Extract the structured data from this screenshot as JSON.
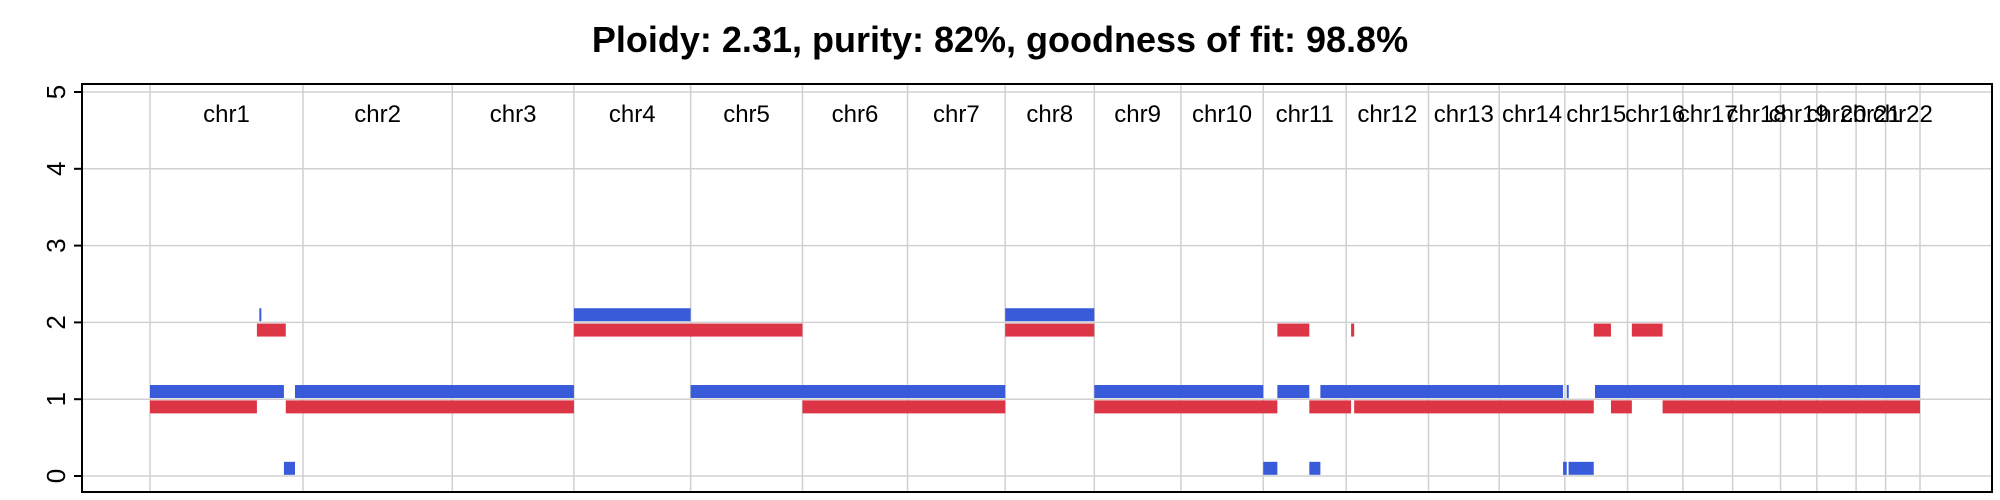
{
  "chart_data": {
    "type": "copy-number-segments",
    "title": "Ploidy: 2.31, purity: 82%, goodness of fit: 98.8%",
    "ylim": [
      0,
      5
    ],
    "yticks": [
      "0",
      "1",
      "2",
      "3",
      "4",
      "5"
    ],
    "grid": true,
    "colors": {
      "major": "#3a5bd9",
      "minor": "#dc3545"
    },
    "genome_length": 2881,
    "chromosomes": [
      {
        "name": "chr1",
        "start": 0,
        "end": 249
      },
      {
        "name": "chr2",
        "start": 249,
        "end": 492
      },
      {
        "name": "chr3",
        "start": 492,
        "end": 690
      },
      {
        "name": "chr4",
        "start": 690,
        "end": 880
      },
      {
        "name": "chr5",
        "start": 880,
        "end": 1062
      },
      {
        "name": "chr6",
        "start": 1062,
        "end": 1233
      },
      {
        "name": "chr7",
        "start": 1233,
        "end": 1392
      },
      {
        "name": "chr8",
        "start": 1392,
        "end": 1537
      },
      {
        "name": "chr9",
        "start": 1537,
        "end": 1678
      },
      {
        "name": "chr10",
        "start": 1678,
        "end": 1812
      },
      {
        "name": "chr11",
        "start": 1812,
        "end": 1947
      },
      {
        "name": "chr12",
        "start": 1947,
        "end": 2081
      },
      {
        "name": "chr13",
        "start": 2081,
        "end": 2196
      },
      {
        "name": "chr14",
        "start": 2196,
        "end": 2303
      },
      {
        "name": "chr15",
        "start": 2303,
        "end": 2405
      },
      {
        "name": "chr16",
        "start": 2405,
        "end": 2495
      },
      {
        "name": "chr17",
        "start": 2495,
        "end": 2576
      },
      {
        "name": "chr18",
        "start": 2576,
        "end": 2654
      },
      {
        "name": "chr19",
        "start": 2654,
        "end": 2713
      },
      {
        "name": "chr20",
        "start": 2713,
        "end": 2777
      },
      {
        "name": "chr21",
        "start": 2777,
        "end": 2825
      },
      {
        "name": "chr22",
        "start": 2825,
        "end": 2881
      }
    ],
    "series": [
      {
        "role": "major",
        "segments": [
          {
            "start": 0,
            "end": 218,
            "value": 1.1
          },
          {
            "start": 178,
            "end": 180,
            "value": 2.1
          },
          {
            "start": 218,
            "end": 236,
            "value": 0.1
          },
          {
            "start": 236,
            "end": 690,
            "value": 1.1
          },
          {
            "start": 690,
            "end": 880,
            "value": 2.1
          },
          {
            "start": 880,
            "end": 1392,
            "value": 1.1
          },
          {
            "start": 1392,
            "end": 1537,
            "value": 2.1
          },
          {
            "start": 1537,
            "end": 1812,
            "value": 1.1
          },
          {
            "start": 1812,
            "end": 1835,
            "value": 0.1
          },
          {
            "start": 1835,
            "end": 1887,
            "value": 1.1
          },
          {
            "start": 1887,
            "end": 1905,
            "value": 0.1
          },
          {
            "start": 1905,
            "end": 2300,
            "value": 1.1
          },
          {
            "start": 2300,
            "end": 2306,
            "value": 0.1
          },
          {
            "start": 2306,
            "end": 2309,
            "value": 1.1
          },
          {
            "start": 2309,
            "end": 2350,
            "value": 0.1
          },
          {
            "start": 2352,
            "end": 2881,
            "value": 1.1
          }
        ]
      },
      {
        "role": "minor",
        "segments": [
          {
            "start": 0,
            "end": 174,
            "value": 0.9
          },
          {
            "start": 174,
            "end": 221,
            "value": 1.9
          },
          {
            "start": 221,
            "end": 690,
            "value": 0.9
          },
          {
            "start": 690,
            "end": 1062,
            "value": 1.9
          },
          {
            "start": 1062,
            "end": 1392,
            "value": 0.9
          },
          {
            "start": 1392,
            "end": 1537,
            "value": 1.9
          },
          {
            "start": 1537,
            "end": 1835,
            "value": 0.9
          },
          {
            "start": 1835,
            "end": 1887,
            "value": 1.9
          },
          {
            "start": 1887,
            "end": 1955,
            "value": 0.9
          },
          {
            "start": 1955,
            "end": 1960,
            "value": 1.9
          },
          {
            "start": 1960,
            "end": 2350,
            "value": 0.9
          },
          {
            "start": 2350,
            "end": 2378,
            "value": 1.9
          },
          {
            "start": 2378,
            "end": 2412,
            "value": 0.9
          },
          {
            "start": 2412,
            "end": 2462,
            "value": 1.9
          },
          {
            "start": 2462,
            "end": 2881,
            "value": 0.9
          }
        ]
      }
    ]
  }
}
